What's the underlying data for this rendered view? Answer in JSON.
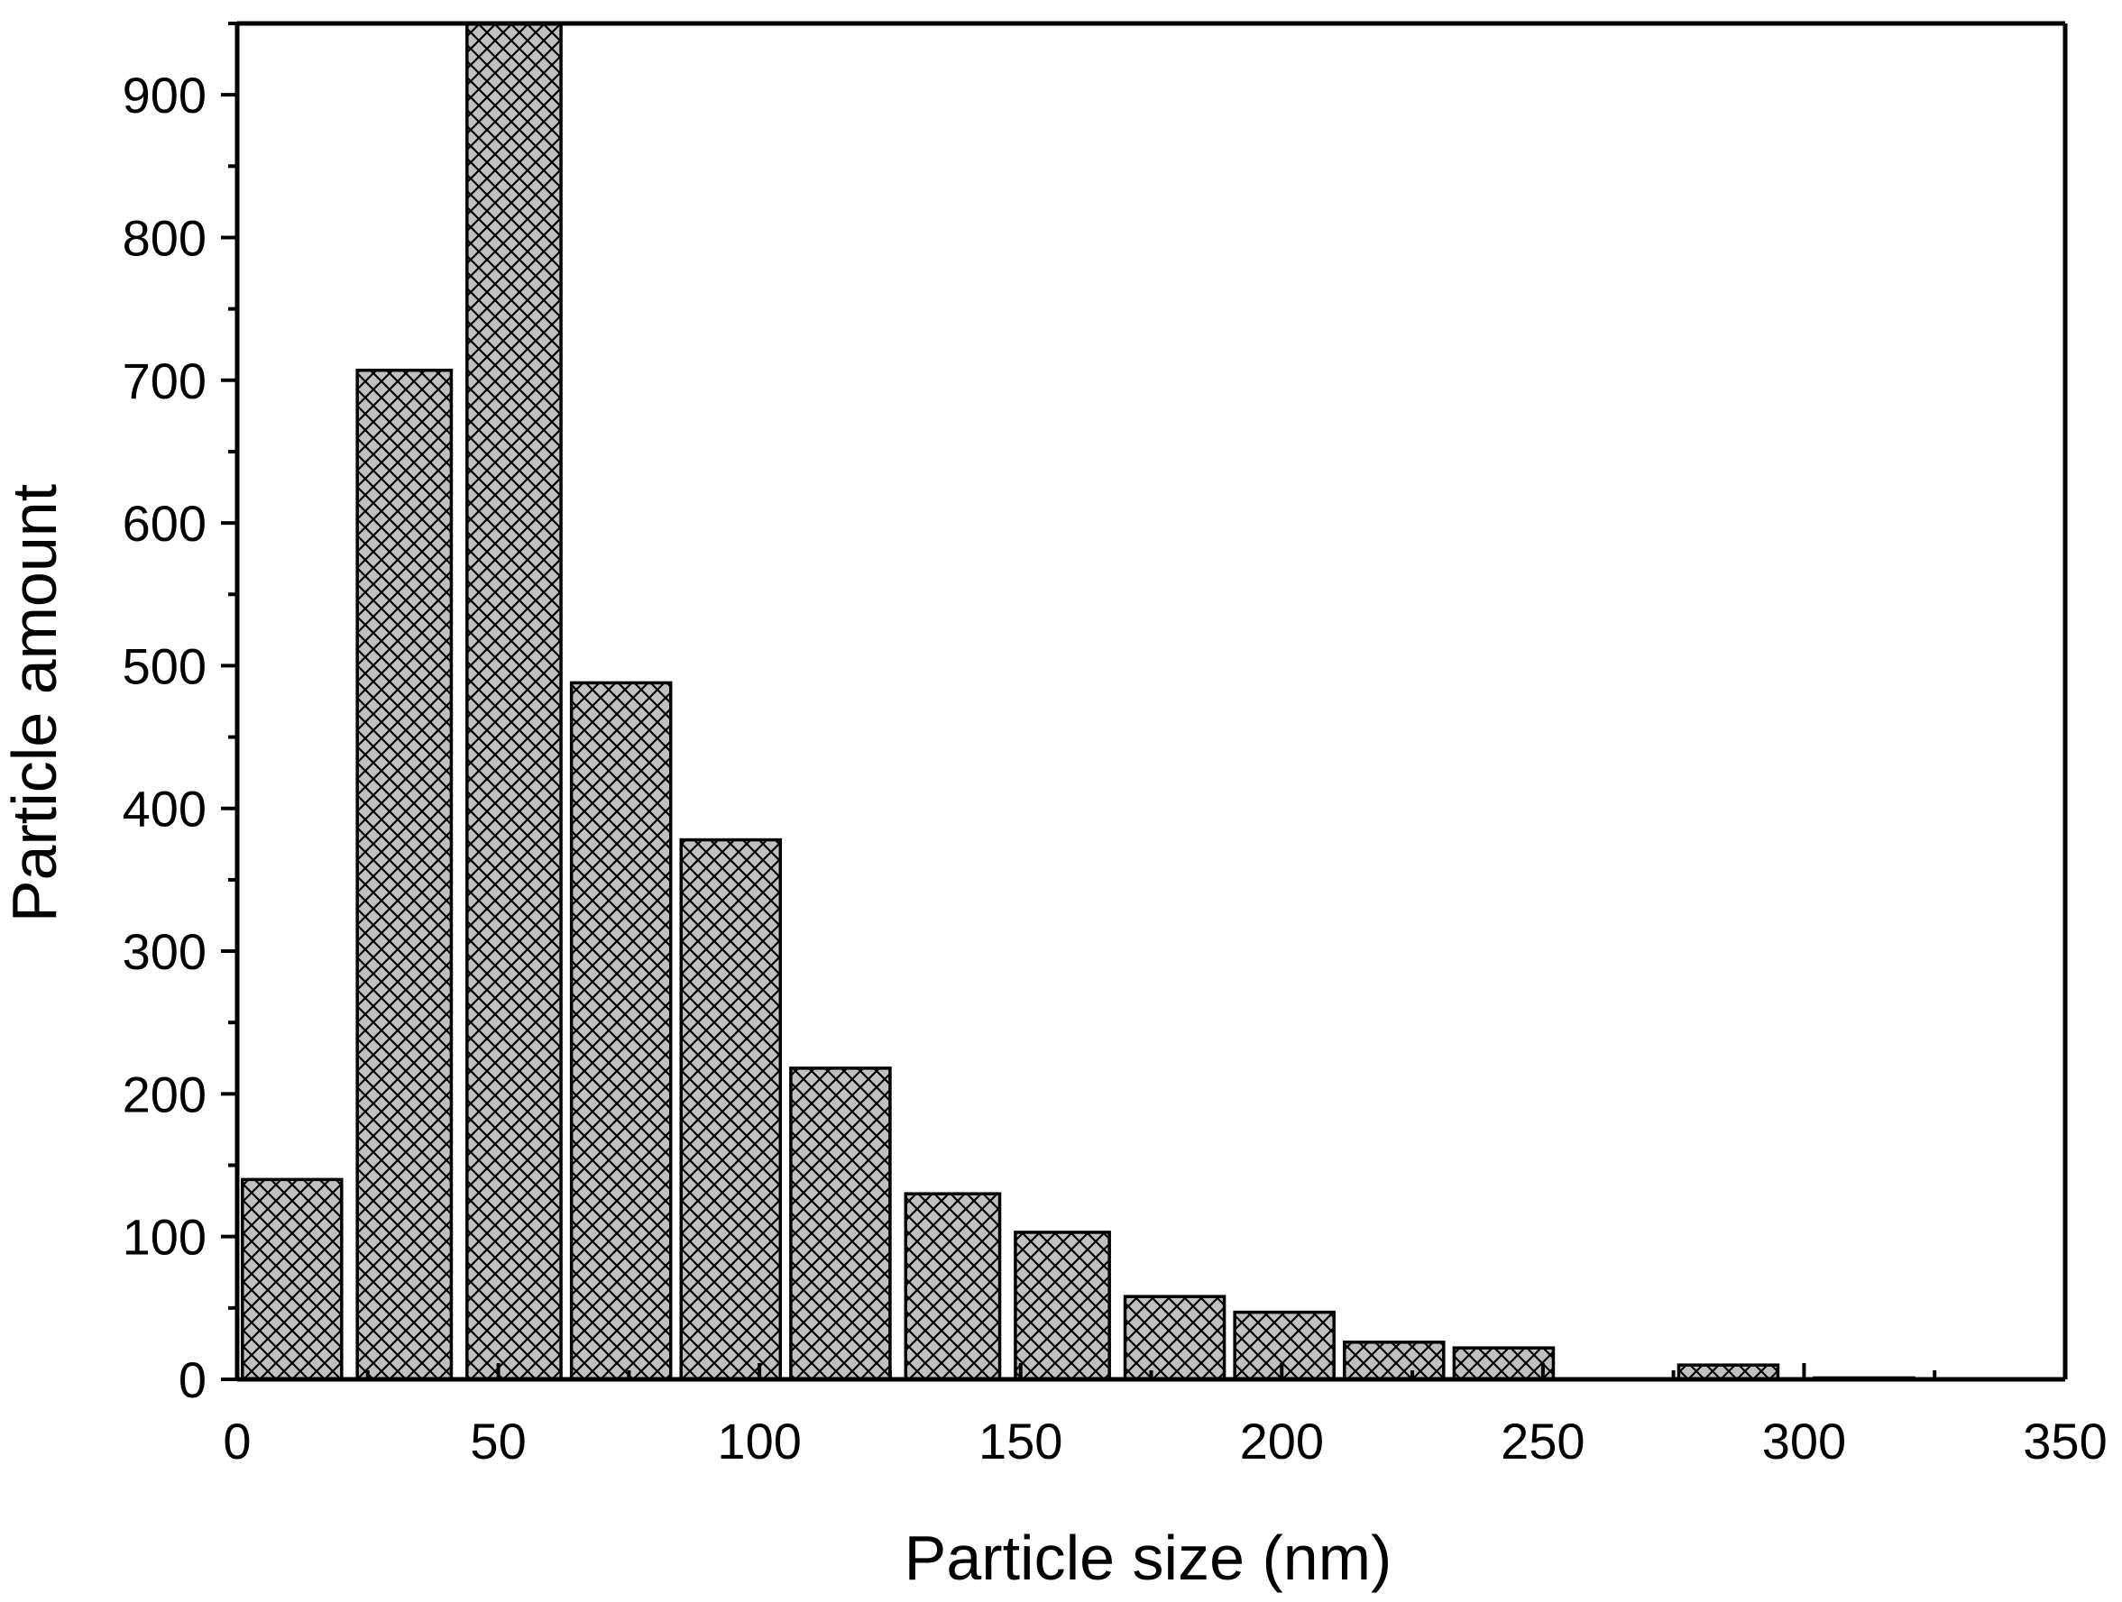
{
  "chart_data": {
    "type": "bar",
    "title": "",
    "xlabel": "Particle size (nm)",
    "ylabel": "Particle amount",
    "xlim": [
      0,
      350
    ],
    "ylim": [
      0,
      950
    ],
    "xticks": [
      0,
      50,
      100,
      150,
      200,
      250,
      300,
      350
    ],
    "yticks": [
      0,
      100,
      200,
      300,
      400,
      500,
      600,
      700,
      800,
      900
    ],
    "bar_fill": "#c0c0c0",
    "hatch": "crosshatch",
    "bars": [
      {
        "x0": 1,
        "x1": 20,
        "value": 140
      },
      {
        "x0": 23,
        "x1": 41,
        "value": 707
      },
      {
        "x0": 44,
        "x1": 62,
        "value": 950
      },
      {
        "x0": 64,
        "x1": 83,
        "value": 488
      },
      {
        "x0": 85,
        "x1": 104,
        "value": 378
      },
      {
        "x0": 106,
        "x1": 125,
        "value": 218
      },
      {
        "x0": 128,
        "x1": 146,
        "value": 130
      },
      {
        "x0": 149,
        "x1": 167,
        "value": 103
      },
      {
        "x0": 170,
        "x1": 189,
        "value": 58
      },
      {
        "x0": 191,
        "x1": 210,
        "value": 47
      },
      {
        "x0": 212,
        "x1": 231,
        "value": 26
      },
      {
        "x0": 233,
        "x1": 252,
        "value": 22
      },
      {
        "x0": 276,
        "x1": 295,
        "value": 10
      },
      {
        "x0": 302,
        "x1": 321,
        "value": 1
      }
    ]
  }
}
